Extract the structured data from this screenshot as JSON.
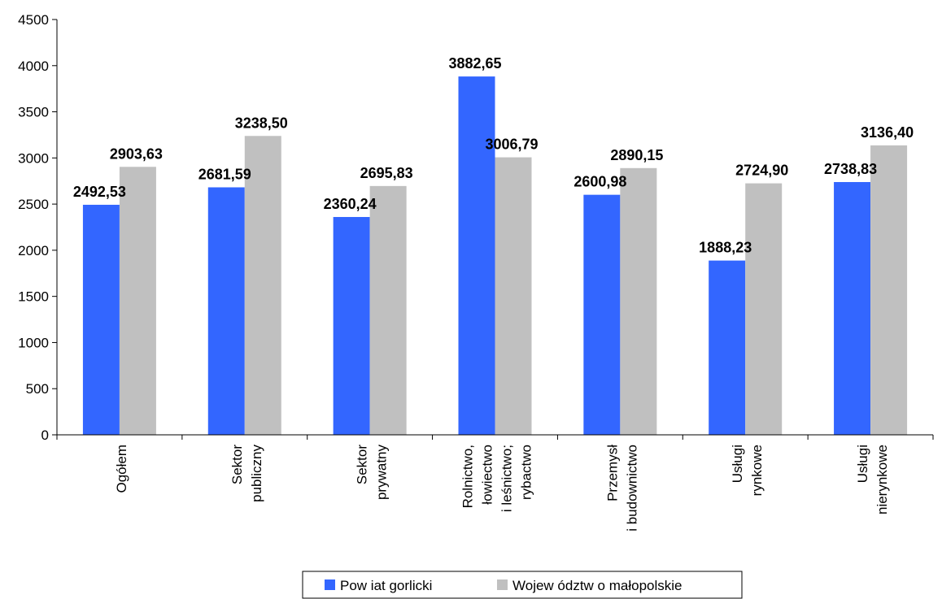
{
  "chart_data": {
    "type": "bar",
    "title": "",
    "xlabel": "",
    "ylabel": "",
    "ylim": [
      0,
      4500
    ],
    "y_ticks": [
      "0",
      "500",
      "1000",
      "1500",
      "2000",
      "2500",
      "3000",
      "3500",
      "4000",
      "4500"
    ],
    "grid": false,
    "legend_position": "bottom",
    "categories": [
      [
        "Ogółem"
      ],
      [
        "Sektor",
        "publiczny"
      ],
      [
        "Sektor",
        "prywatny"
      ],
      [
        "Rolnictwo,",
        "łowiectwo",
        "i leśnictwo;",
        "rybactwo"
      ],
      [
        "Przemysł",
        "i budownictwo"
      ],
      [
        "Usługi",
        "rynkowe"
      ],
      [
        "Usługi",
        "nierynkowe"
      ]
    ],
    "series": [
      {
        "name": "Pow iat gorlicki",
        "color": "#3366ff",
        "values": [
          2492.53,
          2681.59,
          2360.24,
          3882.65,
          2600.98,
          1888.23,
          2738.83
        ],
        "labels": [
          "2492,53",
          "2681,59",
          "2360,24",
          "3882,65",
          "2600,98",
          "1888,23",
          "2738,83"
        ]
      },
      {
        "name": "Wojew ództw o małopolskie",
        "color": "#c0c0c0",
        "values": [
          2903.63,
          3238.5,
          2695.83,
          3006.79,
          2890.15,
          2724.9,
          3136.4
        ],
        "labels": [
          "2903,63",
          "3238,50",
          "2695,83",
          "3006,79",
          "2890,15",
          "2724,90",
          "3136,40"
        ]
      }
    ]
  }
}
